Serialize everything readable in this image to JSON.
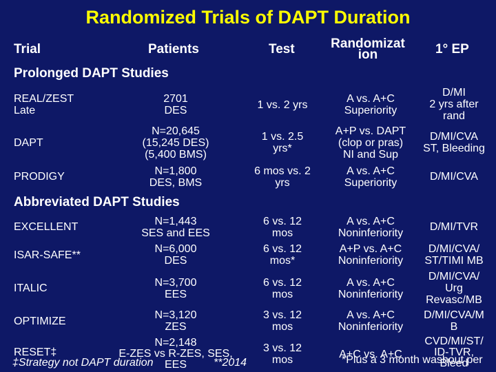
{
  "title": "Randomized Trials of DAPT Duration",
  "headers": {
    "trial": "Trial",
    "patients": "Patients",
    "test": "Test",
    "randomization_1": "Randomizat",
    "randomization_2": "ion",
    "endpoint": "1° EP"
  },
  "sections": {
    "prolonged": "Prolonged DAPT Studies",
    "abbreviated": "Abbreviated DAPT Studies"
  },
  "rows": [
    {
      "trial": [
        "REAL/ZEST",
        "Late"
      ],
      "patients": [
        "2701",
        "DES"
      ],
      "test": [
        "1 vs. 2 yrs"
      ],
      "randomization": [
        "A vs. A+C",
        "Superiority"
      ],
      "endpoint": [
        "D/MI",
        "2 yrs after",
        "rand"
      ]
    },
    {
      "trial": [
        "DAPT"
      ],
      "patients": [
        "N=20,645",
        "(15,245 DES)",
        "(5,400 BMS)"
      ],
      "test": [
        "1 vs. 2.5",
        "yrs*"
      ],
      "randomization": [
        "A+P vs. DAPT",
        "(clop or pras)",
        "NI and Sup"
      ],
      "endpoint": [
        "D/MI/CVA",
        "ST, Bleeding"
      ]
    },
    {
      "trial": [
        "PRODIGY"
      ],
      "patients": [
        "N=1,800",
        "DES, BMS"
      ],
      "test": [
        "6 mos vs. 2",
        "yrs"
      ],
      "randomization": [
        "A vs. A+C",
        "Superiority"
      ],
      "endpoint": [
        "D/MI/CVA"
      ]
    },
    {
      "trial": [
        "EXCELLENT"
      ],
      "patients": [
        "N=1,443",
        "SES and EES"
      ],
      "test": [
        "6 vs. 12",
        "mos"
      ],
      "randomization": [
        "A vs. A+C",
        "Noninferiority"
      ],
      "endpoint": [
        "D/MI/TVR"
      ]
    },
    {
      "trial": [
        "ISAR-SAFE**"
      ],
      "patients": [
        "N=6,000",
        "DES"
      ],
      "test": [
        "6 vs. 12",
        "mos*"
      ],
      "randomization": [
        "A+P vs. A+C",
        "Noninferiority"
      ],
      "endpoint": [
        "D/MI/CVA/",
        "ST/TIMI MB"
      ]
    },
    {
      "trial": [
        "ITALIC"
      ],
      "patients": [
        "N=3,700",
        "EES"
      ],
      "test": [
        "6 vs. 12",
        "mos"
      ],
      "randomization": [
        "A vs. A+C",
        "Noninferiority"
      ],
      "endpoint": [
        "D/MI/CVA/",
        "Urg",
        "Revasc/MB"
      ]
    },
    {
      "trial": [
        "OPTIMIZE"
      ],
      "patients": [
        "N=3,120",
        "ZES"
      ],
      "test": [
        "3 vs. 12",
        "mos"
      ],
      "randomization": [
        "A vs. A+C",
        "Noninferiority"
      ],
      "endpoint": [
        "D/MI/CVA/M",
        "B"
      ]
    },
    {
      "trial": [
        "RESET‡"
      ],
      "patients": [
        "N=2,148",
        "E-ZES vs R-ZES, SES,",
        "EES"
      ],
      "test": [
        "3 vs. 12",
        "mos"
      ],
      "randomization": [
        "A+C vs. A+C"
      ],
      "endpoint": [
        "CVD/MI/ST/",
        "ID-TVR,",
        "Bleed"
      ]
    }
  ],
  "footnotes": {
    "strategy": "‡Strategy not DAPT duration",
    "year": "**2014",
    "washout": "*Plus a 3 month washout per"
  },
  "colors": {
    "background": "#0e1866",
    "title": "#ffff00",
    "text": "#ffffff",
    "dagger": "#ffff00"
  }
}
